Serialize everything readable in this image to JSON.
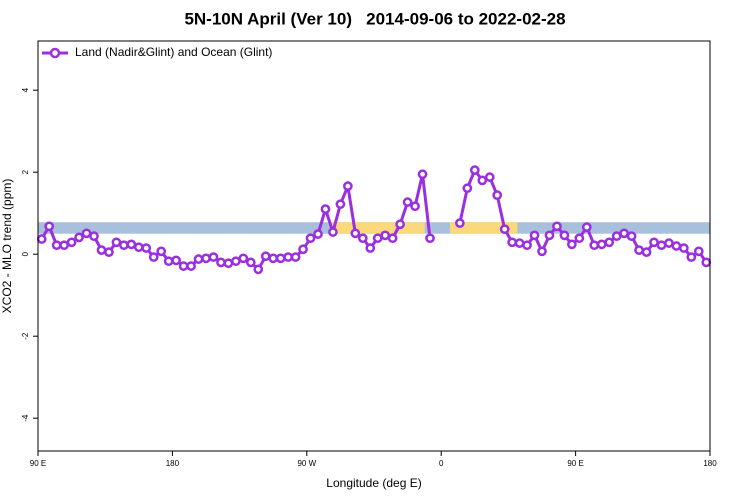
{
  "chart_data": {
    "type": "line",
    "title": "5N-10N April (Ver 10)   2014-09-06 to 2022-02-28",
    "x_label": "Longitude (deg E)",
    "y_label": "XCO2 - MLO trend (ppm)",
    "xlim": [
      90,
      540
    ],
    "ylim": [
      -4.8,
      5.2
    ],
    "xticks": [
      {
        "value": 90,
        "label": "90 E"
      },
      180,
      {
        "value": 270,
        "label": "90 W"
      },
      {
        "value": 360,
        "label": "0"
      },
      {
        "value": 450,
        "label": "90 E"
      },
      {
        "value": 540,
        "label": "180"
      }
    ],
    "yticks": [
      -4,
      -2,
      0,
      2,
      4
    ],
    "legend": "top-left",
    "bands": [
      {
        "color": "#a9c0dd",
        "x": [
          90,
          540
        ],
        "y": [
          0.5,
          0.78
        ]
      },
      {
        "color": "#fcd87c",
        "x": [
          286,
          349
        ],
        "y": [
          0.5,
          0.78
        ]
      },
      {
        "color": "#fcd87c",
        "x": [
          366,
          411
        ],
        "y": [
          0.5,
          0.78
        ]
      }
    ],
    "x": [
      92.5,
      97.5,
      102.5,
      107.5,
      112.5,
      117.5,
      122.5,
      127.5,
      132.5,
      137.5,
      142.5,
      147.5,
      152.5,
      157.5,
      162.5,
      167.5,
      172.5,
      177.5,
      182.5,
      187.5,
      192.5,
      197.5,
      202.5,
      207.5,
      212.5,
      217.5,
      222.5,
      227.5,
      232.5,
      237.5,
      242.5,
      247.5,
      252.5,
      257.5,
      262.5,
      267.5,
      272.5,
      277.5,
      282.5,
      287.5,
      292.5,
      297.5,
      302.5,
      307.5,
      312.5,
      317.5,
      322.5,
      327.5,
      332.5,
      337.5,
      342.5,
      347.5,
      352.5,
      357.5,
      362.5,
      367.5,
      372.5,
      377.5,
      382.5,
      387.5,
      392.5,
      397.5,
      402.5,
      407.5,
      412.5,
      417.5,
      422.5,
      427.5,
      432.5,
      437.5,
      442.5,
      447.5,
      452.5,
      457.5,
      462.5,
      467.5,
      472.5,
      477.5,
      482.5,
      487.5,
      492.5,
      497.5,
      502.5,
      507.5,
      512.5,
      517.5,
      522.5,
      527.5,
      532.5,
      537.5
    ],
    "series": [
      {
        "name": "Land (Nadir&Glint) and Ocean (Glint)",
        "color": "#9b2ee0",
        "values": [
          0.37,
          0.68,
          0.22,
          0.22,
          0.29,
          0.41,
          0.51,
          0.44,
          0.1,
          0.05,
          0.29,
          0.22,
          0.24,
          0.17,
          0.15,
          -0.07,
          0.07,
          -0.17,
          -0.15,
          -0.29,
          -0.29,
          -0.12,
          -0.1,
          -0.07,
          -0.2,
          -0.22,
          -0.17,
          -0.1,
          -0.2,
          -0.37,
          -0.05,
          -0.1,
          -0.1,
          -0.07,
          -0.07,
          0.12,
          0.39,
          0.49,
          1.1,
          0.54,
          1.22,
          1.66,
          0.51,
          0.39,
          0.15,
          0.39,
          0.46,
          0.39,
          0.73,
          1.27,
          1.17,
          1.95,
          0.39,
          null,
          null,
          null,
          0.76,
          1.61,
          2.05,
          1.8,
          1.88,
          1.44,
          0.61,
          0.29,
          0.27,
          0.22,
          0.46,
          0.07,
          0.46,
          0.68,
          0.46,
          0.24,
          0.39,
          0.66,
          0.22,
          0.24,
          0.29,
          0.44,
          0.51,
          0.44,
          0.1,
          0.05,
          0.29,
          0.22,
          0.27,
          0.2,
          0.15,
          -0.07,
          0.07,
          -0.2
        ]
      }
    ]
  }
}
